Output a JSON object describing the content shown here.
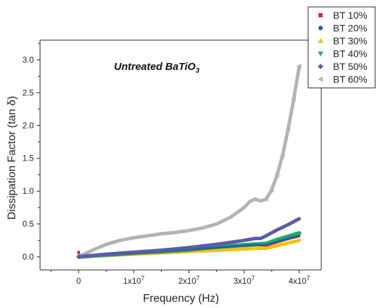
{
  "chart_data": {
    "type": "scatter",
    "annotation": {
      "text": "Untreated BaTiO",
      "sub": "3"
    },
    "xlabel": "Frequency (Hz)",
    "ylabel": "Dissipation Factor (tan δ)",
    "xlim": [
      -7000000,
      44000000
    ],
    "ylim": [
      -0.2,
      3.3
    ],
    "xticks": [
      0,
      10000000,
      20000000,
      30000000,
      40000000
    ],
    "xtick_labels": [
      {
        "base": "0",
        "exp": ""
      },
      {
        "base": "1x10",
        "exp": "7"
      },
      {
        "base": "2x10",
        "exp": "7"
      },
      {
        "base": "3x10",
        "exp": "7"
      },
      {
        "base": "4x10",
        "exp": "7"
      }
    ],
    "yticks": [
      0.0,
      0.5,
      1.0,
      1.5,
      2.0,
      2.5,
      3.0
    ],
    "ytick_labels": [
      "0.0",
      "0.5",
      "1.0",
      "1.5",
      "2.0",
      "2.5",
      "3.0"
    ],
    "legend_position": "top-right",
    "series": [
      {
        "name": "BT 10%",
        "color": "#d62728",
        "marker": "square",
        "x": [
          0,
          5000000,
          10000000,
          15000000,
          20000000,
          25000000,
          30000000,
          32000000,
          34000000,
          36000000,
          38000000,
          40000000
        ],
        "y": [
          0.0,
          0.03,
          0.05,
          0.08,
          0.11,
          0.14,
          0.17,
          0.18,
          0.17,
          0.22,
          0.27,
          0.31
        ]
      },
      {
        "name": "BT 20%",
        "color": "#1f5fa8",
        "marker": "circle",
        "x": [
          0,
          5000000,
          10000000,
          15000000,
          20000000,
          25000000,
          30000000,
          32000000,
          34000000,
          36000000,
          38000000,
          40000000
        ],
        "y": [
          0.0,
          0.03,
          0.05,
          0.08,
          0.11,
          0.14,
          0.17,
          0.18,
          0.18,
          0.23,
          0.28,
          0.32
        ]
      },
      {
        "name": "BT 30%",
        "color": "#f2c200",
        "marker": "triangle-up",
        "x": [
          0,
          5000000,
          10000000,
          15000000,
          20000000,
          25000000,
          30000000,
          32000000,
          34000000,
          36000000,
          38000000,
          40000000
        ],
        "y": [
          0.0,
          0.02,
          0.04,
          0.06,
          0.08,
          0.1,
          0.12,
          0.13,
          0.13,
          0.17,
          0.21,
          0.25
        ]
      },
      {
        "name": "BT 40%",
        "color": "#1fae6a",
        "marker": "triangle-down",
        "x": [
          0,
          5000000,
          10000000,
          15000000,
          20000000,
          25000000,
          30000000,
          32000000,
          34000000,
          36000000,
          38000000,
          40000000
        ],
        "y": [
          0.0,
          0.03,
          0.06,
          0.08,
          0.11,
          0.15,
          0.18,
          0.19,
          0.2,
          0.26,
          0.31,
          0.36
        ]
      },
      {
        "name": "BT 50%",
        "color": "#5b5ba6",
        "marker": "diamond",
        "x": [
          0,
          5000000,
          10000000,
          15000000,
          20000000,
          25000000,
          30000000,
          32000000,
          33000000,
          34000000,
          36000000,
          38000000,
          40000000
        ],
        "y": [
          0.0,
          0.04,
          0.07,
          0.1,
          0.14,
          0.19,
          0.25,
          0.28,
          0.28,
          0.32,
          0.41,
          0.49,
          0.58
        ]
      },
      {
        "name": "BT 60%",
        "color": "#b3b3b3",
        "marker": "triangle-left",
        "x": [
          0,
          2500000,
          5000000,
          7500000,
          10000000,
          12500000,
          15000000,
          17500000,
          20000000,
          22500000,
          25000000,
          27500000,
          30000000,
          31000000,
          32000000,
          33000000,
          34000000,
          35000000,
          36000000,
          37000000,
          38000000,
          39000000,
          40000000
        ],
        "y": [
          0.0,
          0.1,
          0.19,
          0.25,
          0.29,
          0.32,
          0.35,
          0.37,
          0.4,
          0.44,
          0.5,
          0.6,
          0.75,
          0.84,
          0.88,
          0.85,
          0.88,
          1.02,
          1.25,
          1.55,
          1.95,
          2.4,
          2.9
        ]
      }
    ]
  }
}
